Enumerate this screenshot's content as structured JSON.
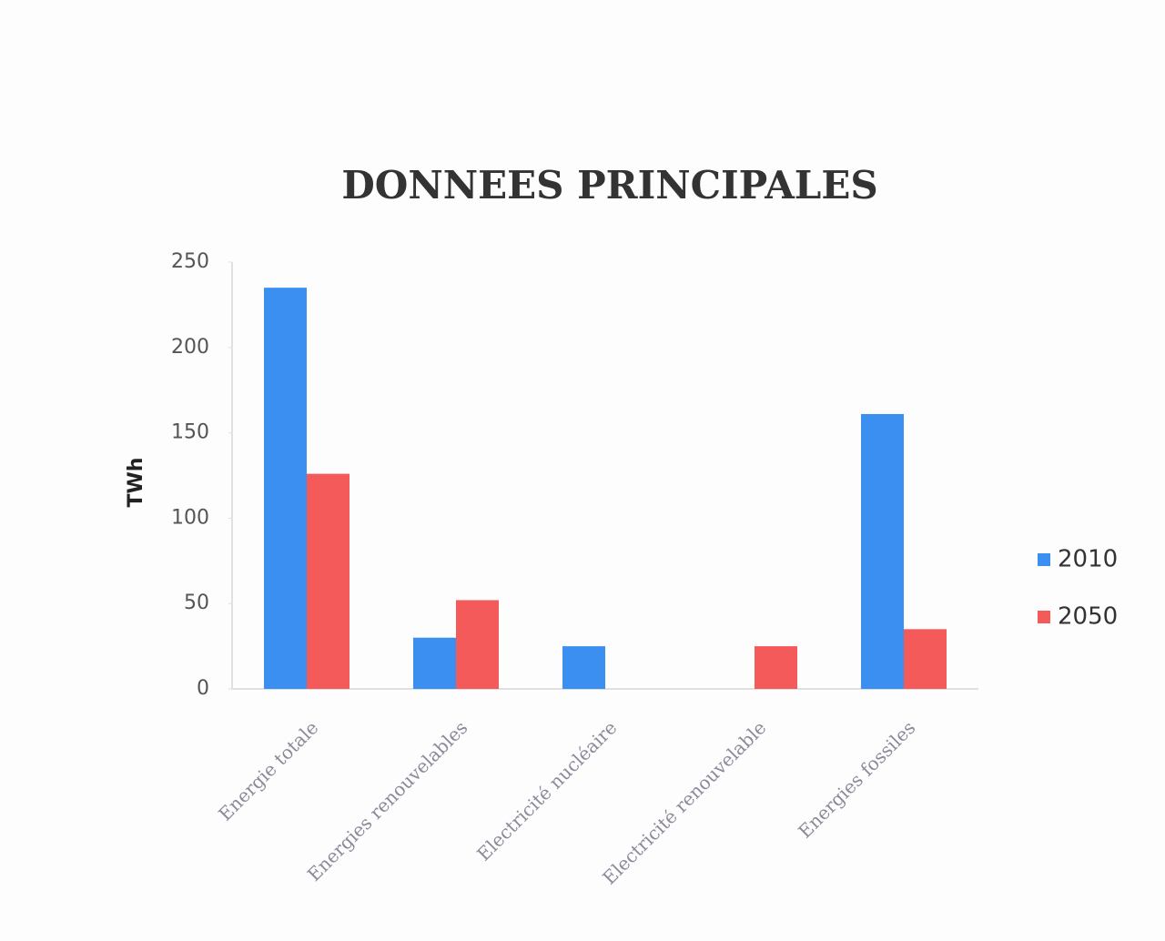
{
  "chart_data": {
    "type": "bar",
    "title": "DONNEES PRINCIPALES",
    "y_label": "TWh",
    "categories": [
      "Energie totale",
      "Energies renouvelables",
      "Electricité nucléaire",
      "Electricité renouvelable",
      "Energies fossiles"
    ],
    "series": [
      {
        "name": "2010",
        "color": "#3b8ff0",
        "values": [
          235,
          30,
          25,
          0,
          161
        ]
      },
      {
        "name": "2050",
        "color": "#f55a5a",
        "values": [
          126,
          52,
          0,
          25,
          35
        ]
      }
    ],
    "ylim": [
      0,
      250
    ],
    "yticks": [
      0,
      50,
      100,
      150,
      200,
      250
    ],
    "grid": false,
    "legend": "right"
  }
}
